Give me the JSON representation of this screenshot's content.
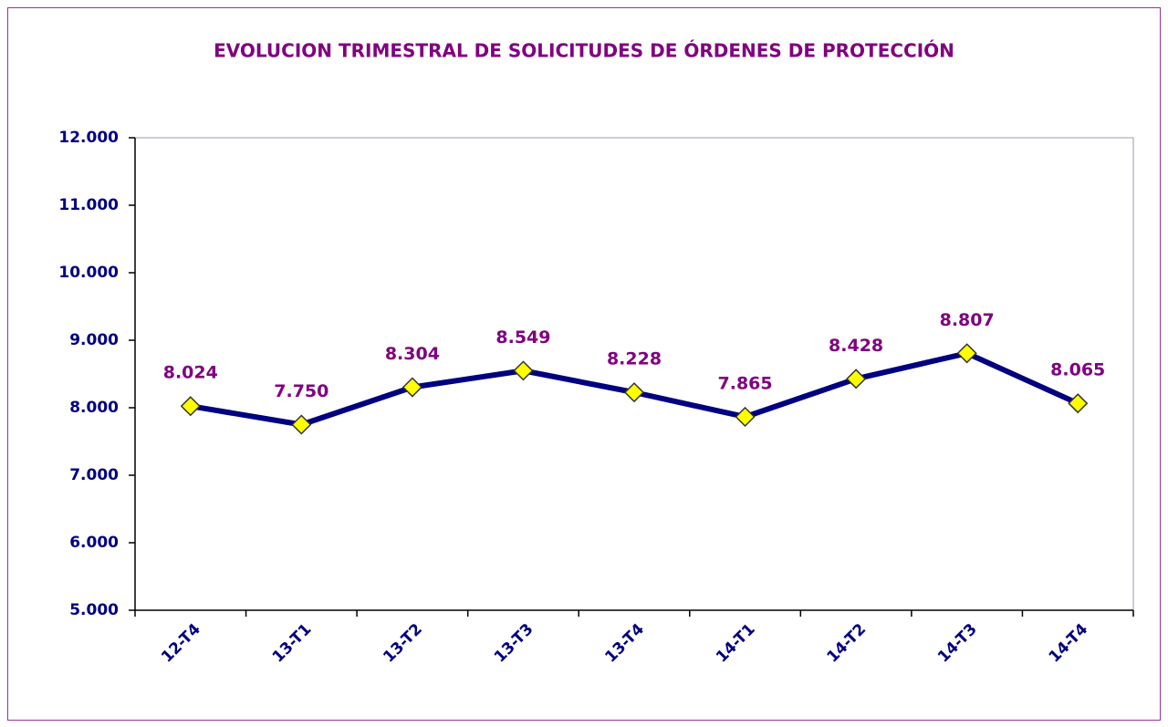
{
  "chart_data": {
    "type": "line",
    "title": "EVOLUCION TRIMESTRAL DE SOLICITUDES DE ÓRDENES DE PROTECCIÓN",
    "categories": [
      "12-T4",
      "13-T1",
      "13-T2",
      "13-T3",
      "13-T4",
      "14-T1",
      "14-T2",
      "14-T3",
      "14-T4"
    ],
    "series": [
      {
        "color": "#000080",
        "values": [
          8024,
          7750,
          8304,
          8549,
          8228,
          7865,
          8428,
          8807,
          8065
        ],
        "value_labels": [
          "8.024",
          "7.750",
          "8.304",
          "8.549",
          "8.228",
          "7.865",
          "8.428",
          "8.807",
          "8.065"
        ]
      }
    ],
    "marker_color": "#ffff00",
    "label_color": "#800080",
    "ylim": [
      5000,
      12000
    ],
    "yticks": [
      {
        "value": 5000,
        "label": "5.000"
      },
      {
        "value": 6000,
        "label": "6.000"
      },
      {
        "value": 7000,
        "label": "7.000"
      },
      {
        "value": 8000,
        "label": "8.000"
      },
      {
        "value": 9000,
        "label": "9.000"
      },
      {
        "value": 10000,
        "label": "10.000"
      },
      {
        "value": 11000,
        "label": "11.000"
      },
      {
        "value": 12000,
        "label": "12.000"
      }
    ],
    "grid": false
  }
}
